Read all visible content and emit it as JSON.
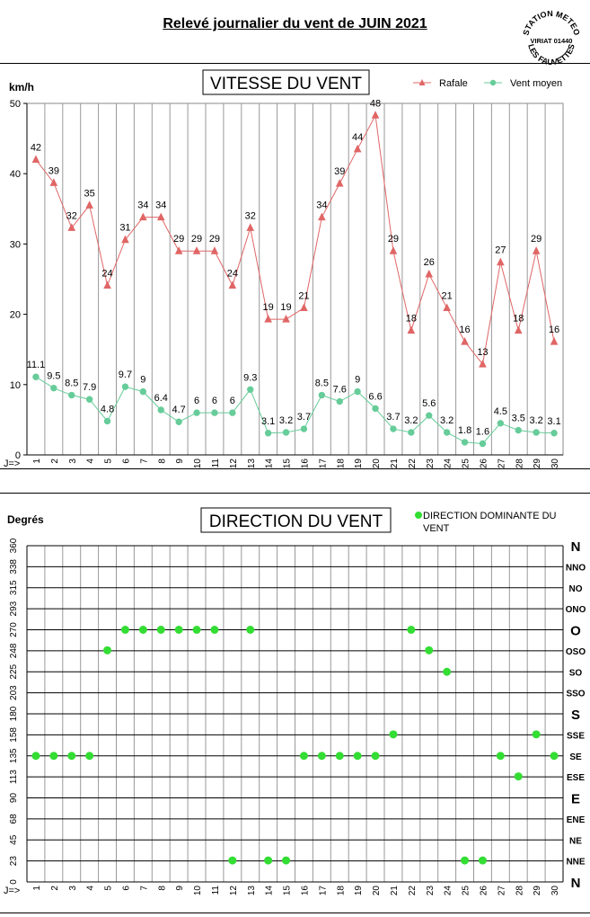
{
  "page": {
    "title": "Relevé journalier du vent de JUIN 2021",
    "stamp": [
      "STATION METEO",
      "VIRIAT 01440",
      "LES FAUVETTES"
    ]
  },
  "chart_data": [
    {
      "type": "line",
      "title": "VITESSE DU VENT",
      "ylabel": "km/h",
      "xlabel": "J=>",
      "ylim": [
        0,
        50
      ],
      "yticks": [
        0,
        10,
        20,
        30,
        40,
        50
      ],
      "grid": "vertical",
      "legend_position": "top-right",
      "x": [
        1,
        2,
        3,
        4,
        5,
        6,
        7,
        8,
        9,
        10,
        11,
        12,
        13,
        14,
        15,
        16,
        17,
        18,
        19,
        20,
        21,
        22,
        23,
        24,
        25,
        26,
        27,
        28,
        29,
        30
      ],
      "series": [
        {
          "name": "Rafale",
          "color": "#e06666",
          "marker": "triangle",
          "values": [
            42,
            39,
            32,
            35,
            24,
            31,
            34,
            34,
            29,
            29,
            29,
            24,
            32,
            19,
            19,
            21,
            34,
            39,
            44,
            48,
            29,
            18,
            26,
            21,
            16,
            13,
            27,
            18,
            29,
            16
          ],
          "plot_values": [
            42,
            38.7,
            32.3,
            35.5,
            24.1,
            30.6,
            33.8,
            33.8,
            29,
            29,
            29,
            24.1,
            32.3,
            19.3,
            19.3,
            20.9,
            33.8,
            38.6,
            43.5,
            48.3,
            29,
            17.7,
            25.7,
            20.9,
            16.1,
            12.9,
            27.4,
            17.7,
            29,
            16.1
          ]
        },
        {
          "name": "Vent moyen",
          "color": "#66cc99",
          "marker": "circle",
          "values": [
            "11.1",
            "9.5",
            "8.5",
            "7.9",
            "4.8",
            "9.7",
            "9",
            "6.4",
            "4.7",
            "6",
            "6",
            "6",
            "9.3",
            "3.1",
            "3.2",
            "3.7",
            "8.5",
            "7.6",
            "9",
            "6.6",
            "3.7",
            "3.2",
            "5.6",
            "3.2",
            "1.8",
            "1.6",
            "4.5",
            "3.5",
            "3.2",
            "3.1"
          ]
        }
      ]
    },
    {
      "type": "scatter",
      "title": "DIRECTION DU VENT",
      "ylabel": "Degrés",
      "xlabel": "J=>",
      "ylim": [
        0,
        360
      ],
      "yticks": [
        "0",
        "23",
        "45",
        "68",
        "90",
        "113",
        "135",
        "158",
        "180",
        "203",
        "225",
        "248",
        "270",
        "293",
        "315",
        "338",
        "360"
      ],
      "compass": [
        "N",
        "NNE",
        "NE",
        "ENE",
        "E",
        "ESE",
        "SE",
        "SSE",
        "S",
        "SSO",
        "SO",
        "OSO",
        "O",
        "ONO",
        "NO",
        "NNO",
        "N"
      ],
      "legend_position": "top-right",
      "x": [
        1,
        2,
        3,
        4,
        5,
        6,
        7,
        8,
        9,
        10,
        11,
        12,
        13,
        14,
        15,
        16,
        17,
        18,
        19,
        20,
        21,
        22,
        23,
        24,
        25,
        26,
        27,
        28,
        29,
        30
      ],
      "series": [
        {
          "name": "DIRECTION DOMINANTE DU VENT",
          "color": "#33dd33",
          "values": [
            135,
            135,
            135,
            135,
            248,
            270,
            270,
            270,
            270,
            270,
            270,
            23,
            270,
            23,
            23,
            135,
            135,
            135,
            135,
            135,
            158,
            270,
            248,
            225,
            23,
            23,
            135,
            113,
            158,
            135
          ]
        }
      ]
    }
  ]
}
